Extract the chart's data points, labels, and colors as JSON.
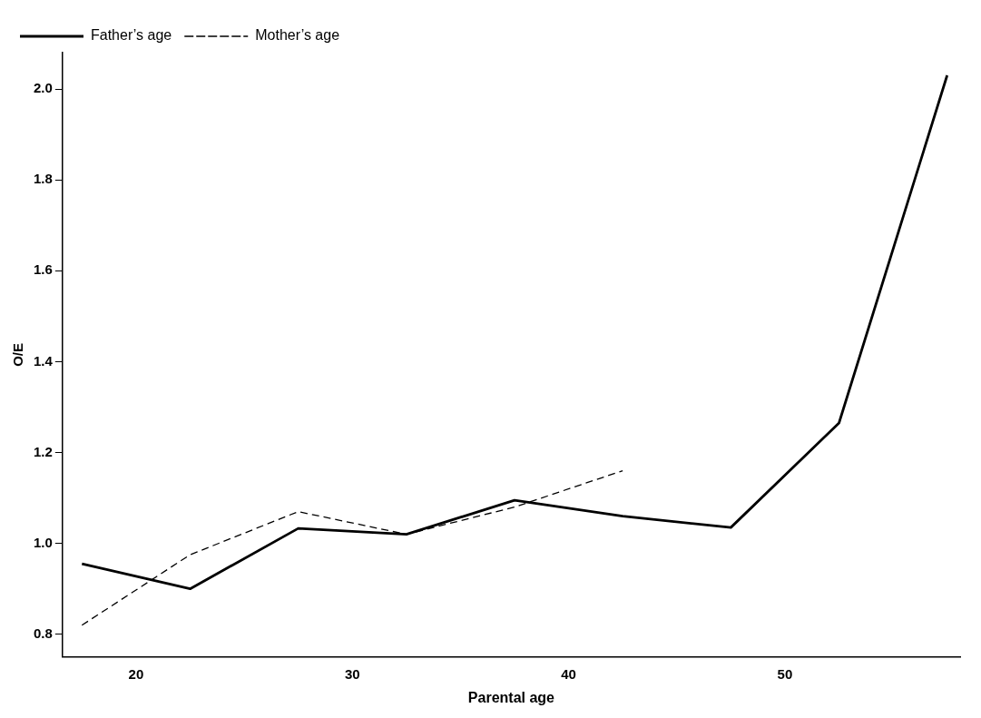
{
  "chart_data": {
    "type": "line",
    "xlabel": "Parental age",
    "ylabel": "O/E",
    "x": [
      17.5,
      22.5,
      27.5,
      32.5,
      37.5,
      42.5,
      47.5,
      52.5,
      57.5
    ],
    "series": [
      {
        "name": "Father’s age",
        "color": "#000000",
        "line_style": "solid",
        "values": [
          0.955,
          0.9,
          1.033,
          1.02,
          1.095,
          1.06,
          1.035,
          1.265,
          2.03
        ]
      },
      {
        "name": "Mother’s age",
        "color": "#000000",
        "line_style": "dashed",
        "values": [
          0.82,
          0.975,
          1.07,
          1.02,
          1.08,
          1.16,
          null,
          null,
          null
        ]
      }
    ],
    "xlim": [
      16.6,
      58.1
    ],
    "xticks": [
      20,
      30,
      40,
      50
    ],
    "ylim": [
      0.75,
      2.08
    ],
    "yticks": [
      0.8,
      {
        "value": 1,
        "label": "1.0"
      },
      1.2,
      1.4,
      1.6,
      1.8,
      {
        "value": 2,
        "label": "2.0"
      }
    ],
    "grid": false,
    "legend": "top left",
    "marker": "none"
  }
}
